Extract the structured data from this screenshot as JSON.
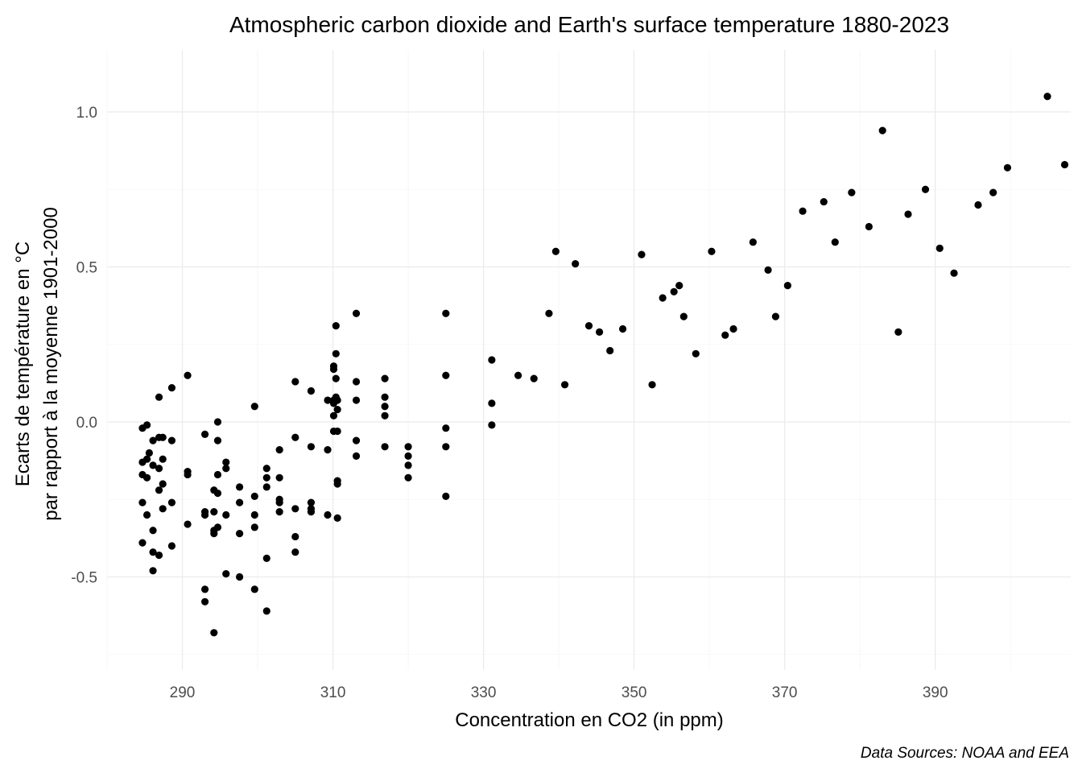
{
  "chart_data": {
    "type": "scatter",
    "title": "Atmospheric carbon dioxide and Earth's surface temperature 1880-2023",
    "xlabel": "Concentration en CO2 (in ppm)",
    "ylabel_lines": [
      "Ecarts de température en °C",
      "par rapport à la moyenne 1901-2000"
    ],
    "caption": "Data Sources: NOAA and EEA",
    "xlim": [
      280,
      408
    ],
    "ylim": [
      -0.8,
      1.2
    ],
    "x_ticks": [
      290,
      310,
      330,
      350,
      370,
      390
    ],
    "x_minor_ticks": [
      280,
      300,
      320,
      340,
      360,
      380,
      400
    ],
    "y_ticks": [
      -0.5,
      0.0,
      0.5,
      1.0
    ],
    "y_tick_labels": [
      "-0.5",
      "0.0",
      "0.5",
      "1.0"
    ],
    "y_minor_ticks": [
      -0.75,
      -0.25,
      0.25,
      0.75
    ],
    "grid": true,
    "point_color": "#000000",
    "points": [
      [
        284.7,
        -0.02
      ],
      [
        284.7,
        -0.13
      ],
      [
        284.7,
        -0.17
      ],
      [
        284.7,
        -0.26
      ],
      [
        284.7,
        -0.39
      ],
      [
        285.3,
        -0.01
      ],
      [
        285.3,
        -0.12
      ],
      [
        285.3,
        -0.18
      ],
      [
        285.3,
        -0.3
      ],
      [
        285.6,
        -0.1
      ],
      [
        286.1,
        -0.06
      ],
      [
        286.1,
        -0.14
      ],
      [
        286.1,
        -0.35
      ],
      [
        286.1,
        -0.42
      ],
      [
        286.1,
        -0.48
      ],
      [
        286.9,
        0.08
      ],
      [
        286.9,
        -0.05
      ],
      [
        286.9,
        -0.15
      ],
      [
        286.9,
        -0.22
      ],
      [
        286.9,
        -0.43
      ],
      [
        287.4,
        -0.05
      ],
      [
        287.4,
        -0.12
      ],
      [
        287.4,
        -0.2
      ],
      [
        287.4,
        -0.28
      ],
      [
        288.6,
        0.11
      ],
      [
        288.6,
        -0.06
      ],
      [
        288.6,
        -0.26
      ],
      [
        288.6,
        -0.4
      ],
      [
        290.7,
        0.15
      ],
      [
        290.7,
        -0.16
      ],
      [
        290.7,
        -0.17
      ],
      [
        290.7,
        -0.33
      ],
      [
        293.0,
        -0.04
      ],
      [
        293.0,
        -0.29
      ],
      [
        293.0,
        -0.3
      ],
      [
        293.0,
        -0.54
      ],
      [
        293.0,
        -0.58
      ],
      [
        294.2,
        -0.22
      ],
      [
        294.2,
        -0.29
      ],
      [
        294.2,
        -0.35
      ],
      [
        294.2,
        -0.36
      ],
      [
        294.2,
        -0.68
      ],
      [
        294.7,
        0.0
      ],
      [
        294.7,
        -0.06
      ],
      [
        294.7,
        -0.17
      ],
      [
        294.7,
        -0.23
      ],
      [
        294.7,
        -0.34
      ],
      [
        295.8,
        -0.13
      ],
      [
        295.8,
        -0.15
      ],
      [
        295.8,
        -0.3
      ],
      [
        295.8,
        -0.49
      ],
      [
        297.6,
        -0.21
      ],
      [
        297.6,
        -0.26
      ],
      [
        297.6,
        -0.36
      ],
      [
        297.6,
        -0.5
      ],
      [
        299.6,
        0.05
      ],
      [
        299.6,
        -0.24
      ],
      [
        299.6,
        -0.3
      ],
      [
        299.6,
        -0.34
      ],
      [
        299.6,
        -0.54
      ],
      [
        301.2,
        -0.15
      ],
      [
        301.2,
        -0.18
      ],
      [
        301.2,
        -0.21
      ],
      [
        301.2,
        -0.44
      ],
      [
        301.2,
        -0.61
      ],
      [
        302.9,
        -0.09
      ],
      [
        302.9,
        -0.18
      ],
      [
        302.9,
        -0.25
      ],
      [
        302.9,
        -0.26
      ],
      [
        302.9,
        -0.29
      ],
      [
        305.0,
        0.13
      ],
      [
        305.0,
        -0.05
      ],
      [
        305.0,
        -0.28
      ],
      [
        305.0,
        -0.37
      ],
      [
        305.0,
        -0.42
      ],
      [
        307.1,
        0.1
      ],
      [
        307.1,
        -0.08
      ],
      [
        307.1,
        -0.26
      ],
      [
        307.1,
        -0.28
      ],
      [
        307.1,
        -0.29
      ],
      [
        309.3,
        0.07
      ],
      [
        309.3,
        -0.09
      ],
      [
        309.3,
        -0.3
      ],
      [
        310.1,
        0.18
      ],
      [
        310.1,
        0.17
      ],
      [
        310.1,
        0.07
      ],
      [
        310.1,
        0.06
      ],
      [
        310.1,
        0.02
      ],
      [
        310.1,
        -0.03
      ],
      [
        310.4,
        0.31
      ],
      [
        310.4,
        0.22
      ],
      [
        310.4,
        0.14
      ],
      [
        310.4,
        0.08
      ],
      [
        310.6,
        0.07
      ],
      [
        310.6,
        0.04
      ],
      [
        310.6,
        -0.03
      ],
      [
        310.6,
        -0.19
      ],
      [
        310.6,
        -0.2
      ],
      [
        310.6,
        -0.31
      ],
      [
        313.1,
        0.35
      ],
      [
        313.1,
        0.13
      ],
      [
        313.1,
        0.07
      ],
      [
        313.1,
        -0.06
      ],
      [
        313.1,
        -0.11
      ],
      [
        316.9,
        0.14
      ],
      [
        316.9,
        0.08
      ],
      [
        316.9,
        0.05
      ],
      [
        316.9,
        0.02
      ],
      [
        316.9,
        -0.08
      ],
      [
        320.0,
        -0.08
      ],
      [
        320.0,
        -0.11
      ],
      [
        320.0,
        -0.14
      ],
      [
        320.0,
        -0.18
      ],
      [
        325.0,
        0.35
      ],
      [
        325.0,
        0.15
      ],
      [
        325.0,
        -0.02
      ],
      [
        325.0,
        -0.08
      ],
      [
        325.0,
        -0.24
      ],
      [
        331.1,
        0.2
      ],
      [
        331.1,
        0.06
      ],
      [
        331.1,
        -0.01
      ],
      [
        334.6,
        0.15
      ],
      [
        336.7,
        0.14
      ],
      [
        338.7,
        0.35
      ],
      [
        339.6,
        0.55
      ],
      [
        340.8,
        0.12
      ],
      [
        342.2,
        0.51
      ],
      [
        344.0,
        0.31
      ],
      [
        345.4,
        0.29
      ],
      [
        346.8,
        0.23
      ],
      [
        348.5,
        0.3
      ],
      [
        351.0,
        0.54
      ],
      [
        352.4,
        0.12
      ],
      [
        353.8,
        0.4
      ],
      [
        355.3,
        0.42
      ],
      [
        356.0,
        0.44
      ],
      [
        356.6,
        0.34
      ],
      [
        358.2,
        0.22
      ],
      [
        360.3,
        0.55
      ],
      [
        362.1,
        0.28
      ],
      [
        363.2,
        0.3
      ],
      [
        365.8,
        0.58
      ],
      [
        367.8,
        0.49
      ],
      [
        368.8,
        0.34
      ],
      [
        370.4,
        0.44
      ],
      [
        372.4,
        0.68
      ],
      [
        375.2,
        0.71
      ],
      [
        376.7,
        0.58
      ],
      [
        378.9,
        0.74
      ],
      [
        381.2,
        0.63
      ],
      [
        383.0,
        0.94
      ],
      [
        385.1,
        0.29
      ],
      [
        386.4,
        0.67
      ],
      [
        388.7,
        0.75
      ],
      [
        390.6,
        0.56
      ],
      [
        392.5,
        0.48
      ],
      [
        395.7,
        0.7
      ],
      [
        397.7,
        0.74
      ],
      [
        399.6,
        0.82
      ],
      [
        404.9,
        1.05
      ],
      [
        407.2,
        0.83
      ]
    ]
  }
}
